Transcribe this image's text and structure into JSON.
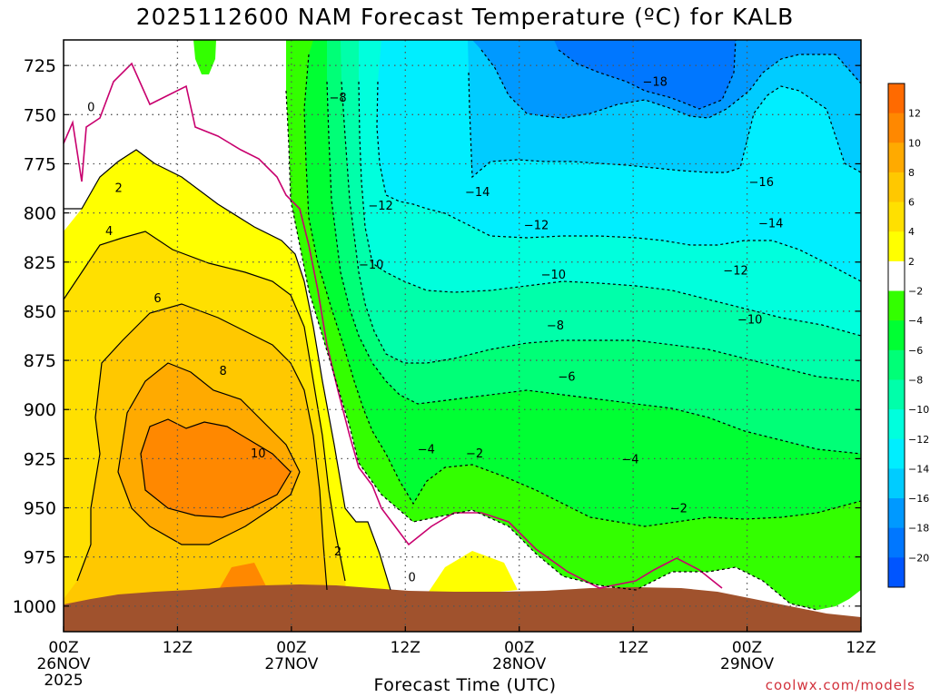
{
  "title": "2025112600 NAM Forecast Temperature (ºC) for KALB",
  "xlabel": "Forecast Time (UTC)",
  "credit": "coolwx.com/models",
  "chart_data": {
    "type": "heatmap",
    "title": "2025112600 NAM Forecast Temperature (ºC) for KALB",
    "xlabel": "Forecast Time (UTC)",
    "ylabel": "",
    "y_axis": "pressure (hPa), inverted",
    "yticks": [
      725,
      750,
      775,
      800,
      825,
      850,
      875,
      900,
      925,
      950,
      975,
      1000
    ],
    "ylim": [
      1013,
      712
    ],
    "xlim_hours": [
      0,
      84
    ],
    "xticks": [
      {
        "hour": 0,
        "label": "00Z",
        "sub": "26NOV",
        "year": "2025"
      },
      {
        "hour": 12,
        "label": "12Z",
        "sub": "",
        "year": ""
      },
      {
        "hour": 24,
        "label": "00Z",
        "sub": "27NOV",
        "year": ""
      },
      {
        "hour": 36,
        "label": "12Z",
        "sub": "",
        "year": ""
      },
      {
        "hour": 48,
        "label": "00Z",
        "sub": "28NOV",
        "year": ""
      },
      {
        "hour": 60,
        "label": "12Z",
        "sub": "",
        "year": ""
      },
      {
        "hour": 72,
        "label": "00Z",
        "sub": "29NOV",
        "year": ""
      },
      {
        "hour": 84,
        "label": "12Z",
        "sub": "",
        "year": ""
      }
    ],
    "grid": true,
    "colorbar": {
      "placement": "right",
      "labels": [
        "12",
        "10",
        "8",
        "6",
        "4",
        "2",
        "-2",
        "-4",
        "-6",
        "-8",
        "-10",
        "-12",
        "-14",
        "-16",
        "-18",
        "-20"
      ],
      "colors": [
        "#ff6a00",
        "#ff8800",
        "#ffaa00",
        "#ffc800",
        "#ffe000",
        "#ffff00",
        "#ffffff",
        "#33ff00",
        "#00ff33",
        "#00ff77",
        "#00ffaa",
        "#00ffdd",
        "#00eeff",
        "#00ccff",
        "#0099ff",
        "#0077ff",
        "#0055ff"
      ]
    },
    "ground_color": "#a0522d",
    "contour_labels": [
      {
        "hour": 2.9,
        "p": 746,
        "t": "0"
      },
      {
        "hour": 5.8,
        "p": 787,
        "t": "2"
      },
      {
        "hour": 4.8,
        "p": 809,
        "t": "4"
      },
      {
        "hour": 9.9,
        "p": 843,
        "t": "6"
      },
      {
        "hour": 16.8,
        "p": 880,
        "t": "8"
      },
      {
        "hour": 20.5,
        "p": 922,
        "t": "10"
      },
      {
        "hour": 28.9,
        "p": 972,
        "t": "2"
      },
      {
        "hour": 36.7,
        "p": 985,
        "t": "0"
      },
      {
        "hour": 28.9,
        "p": 741,
        "t": "-8"
      },
      {
        "hour": 33.4,
        "p": 796,
        "t": "-12"
      },
      {
        "hour": 32.4,
        "p": 826,
        "t": "-10"
      },
      {
        "hour": 43.6,
        "p": 789,
        "t": "-14"
      },
      {
        "hour": 62.3,
        "p": 733,
        "t": "-18"
      },
      {
        "hour": 73.5,
        "p": 784,
        "t": "-16"
      },
      {
        "hour": 49.8,
        "p": 806,
        "t": "-12"
      },
      {
        "hour": 74.5,
        "p": 805,
        "t": "-14"
      },
      {
        "hour": 51.6,
        "p": 831,
        "t": "-10"
      },
      {
        "hour": 70.8,
        "p": 829,
        "t": "-12"
      },
      {
        "hour": 51.8,
        "p": 857,
        "t": "-8"
      },
      {
        "hour": 72.3,
        "p": 854,
        "t": "-10"
      },
      {
        "hour": 53.0,
        "p": 883,
        "t": "-6"
      },
      {
        "hour": 38.2,
        "p": 920,
        "t": "-4"
      },
      {
        "hour": 43.3,
        "p": 922,
        "t": "-2"
      },
      {
        "hour": 59.7,
        "p": 925,
        "t": "-4"
      },
      {
        "hour": 64.8,
        "p": 950,
        "t": "-2"
      }
    ]
  }
}
